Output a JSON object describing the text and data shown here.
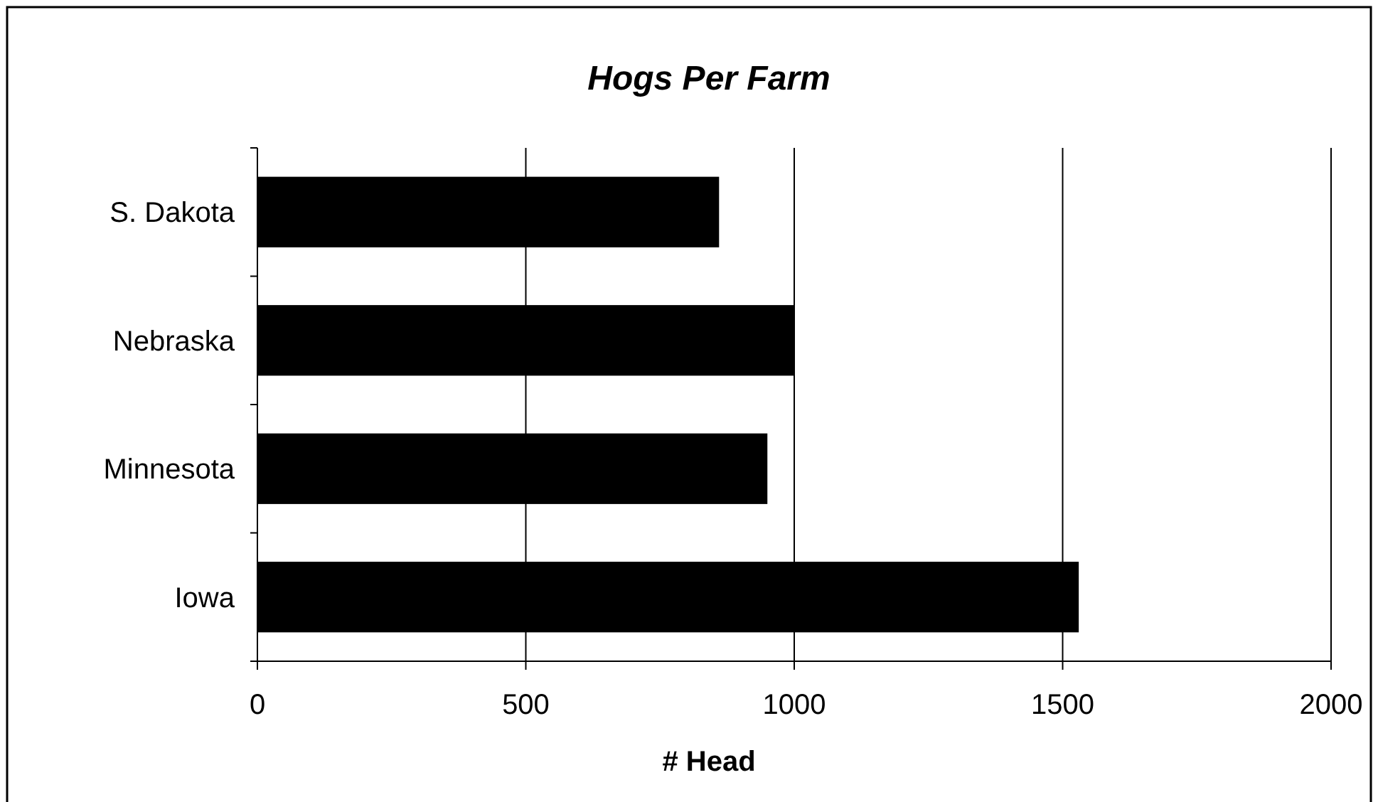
{
  "chart_data": {
    "type": "bar",
    "orientation": "horizontal",
    "title": "Hogs Per Farm",
    "xlabel": "# Head",
    "categories": [
      "S. Dakota",
      "Nebraska",
      "Minnesota",
      "Iowa"
    ],
    "values": [
      860,
      1000,
      950,
      1530
    ],
    "color": "#000000",
    "xlim": [
      0,
      2000
    ],
    "xticks": [
      0,
      500,
      1000,
      1500,
      2000
    ],
    "grid": "x"
  }
}
